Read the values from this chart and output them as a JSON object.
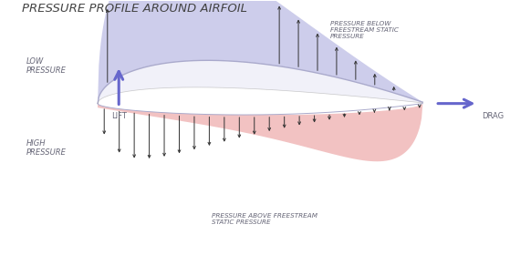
{
  "title": "PRESSURE PROFILE AROUND AIRFOIL",
  "title_fontsize": 9.5,
  "bg_color": "#ffffff",
  "upper_fill_color": "#c5c5e8",
  "lower_fill_color": "#f0b8b8",
  "airfoil_top_color": "#e8e8f5",
  "airfoil_bottom_color": "#d0d0e8",
  "arrow_color": "#333333",
  "lift_arrow_color": "#6666cc",
  "drag_arrow_color": "#6666cc",
  "label_color": "#666677",
  "low_pressure_text": "LOW\nPRESSURE",
  "high_pressure_text": "HIGH\nPRESSURE",
  "pressure_below_text": "PRESSURE BELOW\nFREESTREAM STATIC\nPRESSURE",
  "pressure_above_text": "PRESSURE ABOVE FREESTREAM\nSTATIC PRESSURE",
  "lift_text": "LIFT",
  "drag_text": "DRAG",
  "figsize": [
    5.59,
    2.8
  ],
  "dpi": 100
}
